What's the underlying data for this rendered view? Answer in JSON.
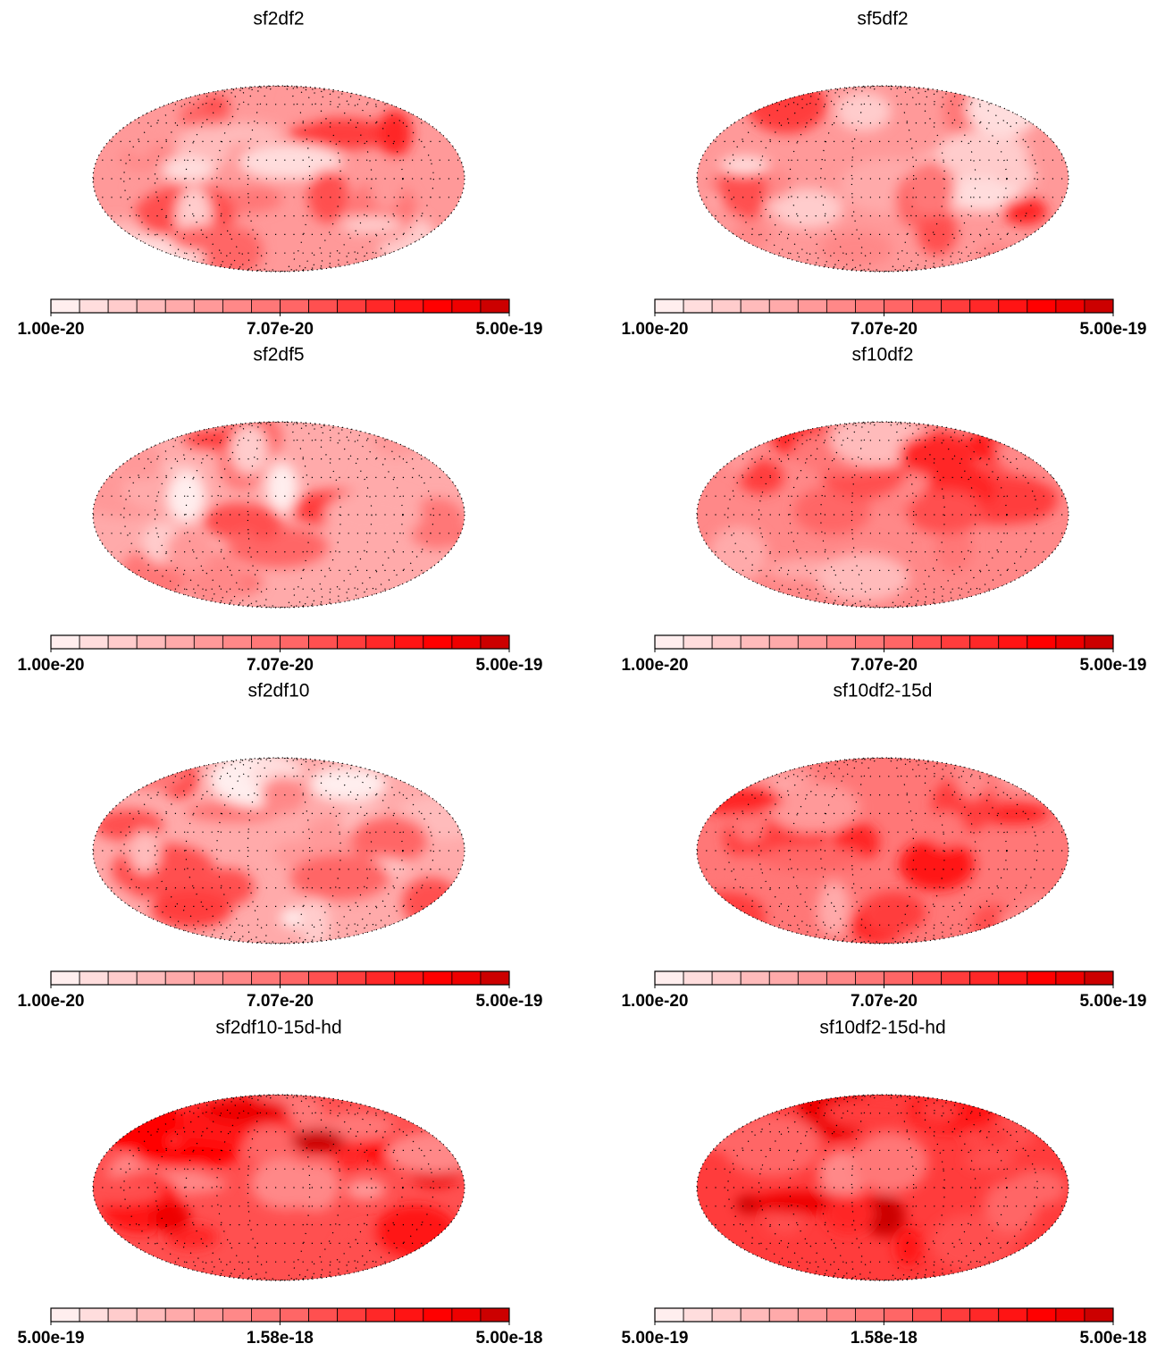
{
  "chart_data": [
    {
      "type": "skymap",
      "title": "sf2df2",
      "log": true,
      "clim": [
        1e-20,
        5e-19
      ],
      "cticks": [
        {
          "value": 1e-20,
          "label": "1.00e-20"
        },
        {
          "value": 7.07e-20,
          "label": "7.07e-20"
        },
        {
          "value": 5e-19,
          "label": "5.00e-19"
        }
      ],
      "colors": [
        "#ffeeee",
        "#ffdddd",
        "#ffcccc",
        "#ffbbbb",
        "#ffaaaa",
        "#ff9999",
        "#ff8888",
        "#ff7777",
        "#ff6666",
        "#ff5050",
        "#ff3c3c",
        "#ff2828",
        "#ff1414",
        "#ff0000",
        "#ee0000",
        "#cc0000"
      ]
    },
    {
      "type": "skymap",
      "title": "sf5df2",
      "log": true,
      "clim": [
        1e-20,
        5e-19
      ],
      "cticks": [
        {
          "value": 1e-20,
          "label": "1.00e-20"
        },
        {
          "value": 7.07e-20,
          "label": "7.07e-20"
        },
        {
          "value": 5e-19,
          "label": "5.00e-19"
        }
      ],
      "colors": [
        "#ffeeee",
        "#ffdddd",
        "#ffcccc",
        "#ffbbbb",
        "#ffaaaa",
        "#ff9999",
        "#ff8888",
        "#ff7777",
        "#ff6666",
        "#ff5050",
        "#ff3c3c",
        "#ff2828",
        "#ff1414",
        "#ff0000",
        "#ee0000",
        "#cc0000"
      ]
    },
    {
      "type": "skymap",
      "title": "sf2df5",
      "log": true,
      "clim": [
        1e-20,
        5e-19
      ],
      "cticks": [
        {
          "value": 1e-20,
          "label": "1.00e-20"
        },
        {
          "value": 7.07e-20,
          "label": "7.07e-20"
        },
        {
          "value": 5e-19,
          "label": "5.00e-19"
        }
      ],
      "colors": [
        "#ffeeee",
        "#ffdddd",
        "#ffcccc",
        "#ffbbbb",
        "#ffaaaa",
        "#ff9999",
        "#ff8888",
        "#ff7777",
        "#ff6666",
        "#ff5050",
        "#ff3c3c",
        "#ff2828",
        "#ff1414",
        "#ff0000",
        "#ee0000",
        "#cc0000"
      ]
    },
    {
      "type": "skymap",
      "title": "sf10df2",
      "log": true,
      "clim": [
        1e-20,
        5e-19
      ],
      "cticks": [
        {
          "value": 1e-20,
          "label": "1.00e-20"
        },
        {
          "value": 7.07e-20,
          "label": "7.07e-20"
        },
        {
          "value": 5e-19,
          "label": "5.00e-19"
        }
      ],
      "colors": [
        "#ffeeee",
        "#ffdddd",
        "#ffcccc",
        "#ffbbbb",
        "#ffaaaa",
        "#ff9999",
        "#ff8888",
        "#ff7777",
        "#ff6666",
        "#ff5050",
        "#ff3c3c",
        "#ff2828",
        "#ff1414",
        "#ff0000",
        "#ee0000",
        "#cc0000"
      ]
    },
    {
      "type": "skymap",
      "title": "sf2df10",
      "log": true,
      "clim": [
        1e-20,
        5e-19
      ],
      "cticks": [
        {
          "value": 1e-20,
          "label": "1.00e-20"
        },
        {
          "value": 7.07e-20,
          "label": "7.07e-20"
        },
        {
          "value": 5e-19,
          "label": "5.00e-19"
        }
      ],
      "colors": [
        "#ffeeee",
        "#ffdddd",
        "#ffcccc",
        "#ffbbbb",
        "#ffaaaa",
        "#ff9999",
        "#ff8888",
        "#ff7777",
        "#ff6666",
        "#ff5050",
        "#ff3c3c",
        "#ff2828",
        "#ff1414",
        "#ff0000",
        "#ee0000",
        "#cc0000"
      ]
    },
    {
      "type": "skymap",
      "title": "sf10df2-15d",
      "log": true,
      "clim": [
        1e-20,
        5e-19
      ],
      "cticks": [
        {
          "value": 1e-20,
          "label": "1.00e-20"
        },
        {
          "value": 7.07e-20,
          "label": "7.07e-20"
        },
        {
          "value": 5e-19,
          "label": "5.00e-19"
        }
      ],
      "colors": [
        "#ffeeee",
        "#ffdddd",
        "#ffcccc",
        "#ffbbbb",
        "#ffaaaa",
        "#ff9999",
        "#ff8888",
        "#ff7777",
        "#ff6666",
        "#ff5050",
        "#ff3c3c",
        "#ff2828",
        "#ff1414",
        "#ff0000",
        "#ee0000",
        "#cc0000"
      ]
    },
    {
      "type": "skymap",
      "title": "sf2df10-15d-hd",
      "log": true,
      "clim": [
        5e-19,
        5e-18
      ],
      "cticks": [
        {
          "value": 5e-19,
          "label": "5.00e-19"
        },
        {
          "value": 1.58e-18,
          "label": "1.58e-18"
        },
        {
          "value": 5e-18,
          "label": "5.00e-18"
        }
      ],
      "colors": [
        "#ffeeee",
        "#ffdddd",
        "#ffcccc",
        "#ffbbbb",
        "#ffaaaa",
        "#ff9999",
        "#ff8888",
        "#ff7777",
        "#ff6666",
        "#ff5050",
        "#ff3c3c",
        "#ff2828",
        "#ff1414",
        "#ff0000",
        "#ee0000",
        "#cc0000"
      ]
    },
    {
      "type": "skymap",
      "title": "sf10df2-15d-hd",
      "log": true,
      "clim": [
        5e-19,
        5e-18
      ],
      "cticks": [
        {
          "value": 5e-19,
          "label": "5.00e-19"
        },
        {
          "value": 1.58e-18,
          "label": "1.58e-18"
        },
        {
          "value": 5e-18,
          "label": "5.00e-18"
        }
      ],
      "colors": [
        "#ffeeee",
        "#ffdddd",
        "#ffcccc",
        "#ffbbbb",
        "#ffaaaa",
        "#ff9999",
        "#ff8888",
        "#ff7777",
        "#ff6666",
        "#ff5050",
        "#ff3c3c",
        "#ff2828",
        "#ff1414",
        "#ff0000",
        "#ee0000",
        "#cc0000"
      ]
    }
  ]
}
